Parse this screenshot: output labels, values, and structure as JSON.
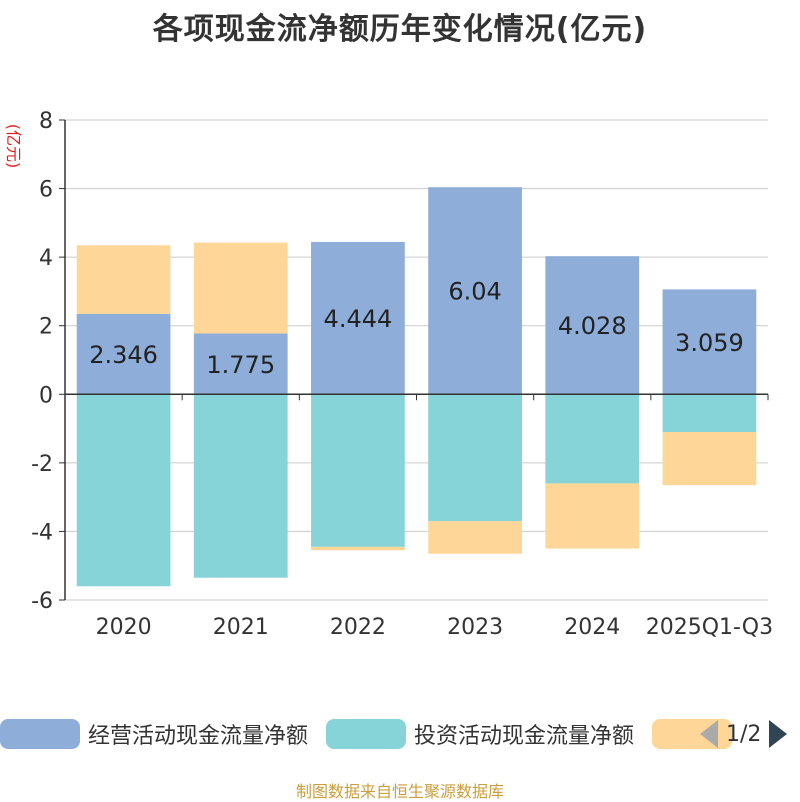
{
  "chart_data": {
    "type": "bar",
    "stacked": true,
    "title": "各项现金流净额历年变化情况(亿元)",
    "ylabel": "(亿元)",
    "xlabel": "",
    "ylim": [
      -6,
      8
    ],
    "yticks": [
      -6,
      -4,
      -2,
      0,
      2,
      4,
      6,
      8
    ],
    "categories": [
      "2020",
      "2021",
      "2022",
      "2023",
      "2024",
      "2025Q1-Q3"
    ],
    "series": [
      {
        "name": "经营活动现金流量净额",
        "color": "#8eadd9",
        "values": [
          2.346,
          1.775,
          4.444,
          6.04,
          4.028,
          3.059
        ],
        "labels": [
          "2.346",
          "1.775",
          "4.444",
          "6.04",
          "4.028",
          "3.059"
        ]
      },
      {
        "name": "投资活动现金流量净额",
        "color": "#86d4d7",
        "values": [
          -5.6,
          -5.35,
          -4.45,
          -3.7,
          -2.6,
          -1.1
        ]
      },
      {
        "name": "",
        "color": "#fed697",
        "values": [
          2.0,
          2.65,
          -0.1,
          -0.95,
          -1.9,
          -1.55
        ]
      }
    ]
  },
  "legend": {
    "items": [
      {
        "label": "经营活动现金流量净额",
        "color": "#8eadd9"
      },
      {
        "label": "投资活动现金流量净额",
        "color": "#86d4d7"
      },
      {
        "label": "",
        "color": "#fed697"
      }
    ],
    "page": "1/2"
  },
  "source": "制图数据来自恒生聚源数据库"
}
